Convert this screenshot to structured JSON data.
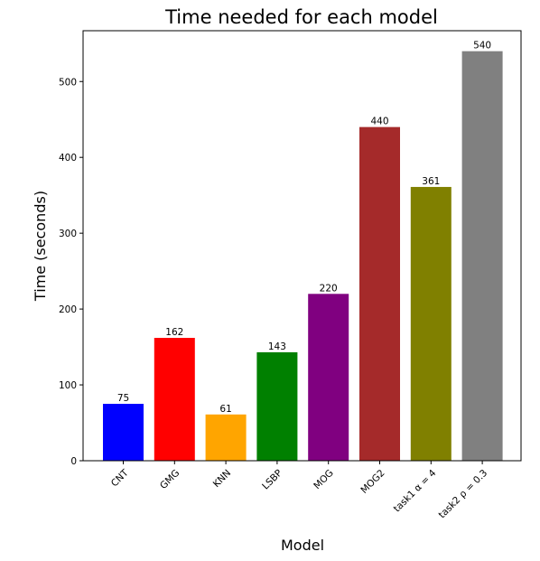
{
  "chart_data": {
    "type": "bar",
    "title": "Time needed for each model",
    "xlabel": "Model",
    "ylabel": "Time (seconds)",
    "categories": [
      "CNT",
      "GMG",
      "KNN",
      "LSBP",
      "MOG",
      "MOG2",
      "task1 α = 4",
      "task2 ρ = 0.3"
    ],
    "values": [
      75,
      162,
      61,
      143,
      220,
      440,
      361,
      540
    ],
    "data_labels": [
      "75",
      "162",
      "61",
      "143",
      "220",
      "440",
      "361",
      "540"
    ],
    "colors": [
      "#0000ff",
      "#ff0000",
      "#ffa500",
      "#008000",
      "#800080",
      "#a52a2a",
      "#808000",
      "#808080"
    ],
    "ylim": [
      0,
      567
    ],
    "yticks": [
      0,
      100,
      200,
      300,
      400,
      500
    ],
    "ytick_labels": [
      "0",
      "100",
      "200",
      "300",
      "400",
      "500"
    ],
    "grid": false,
    "legend": false
  }
}
